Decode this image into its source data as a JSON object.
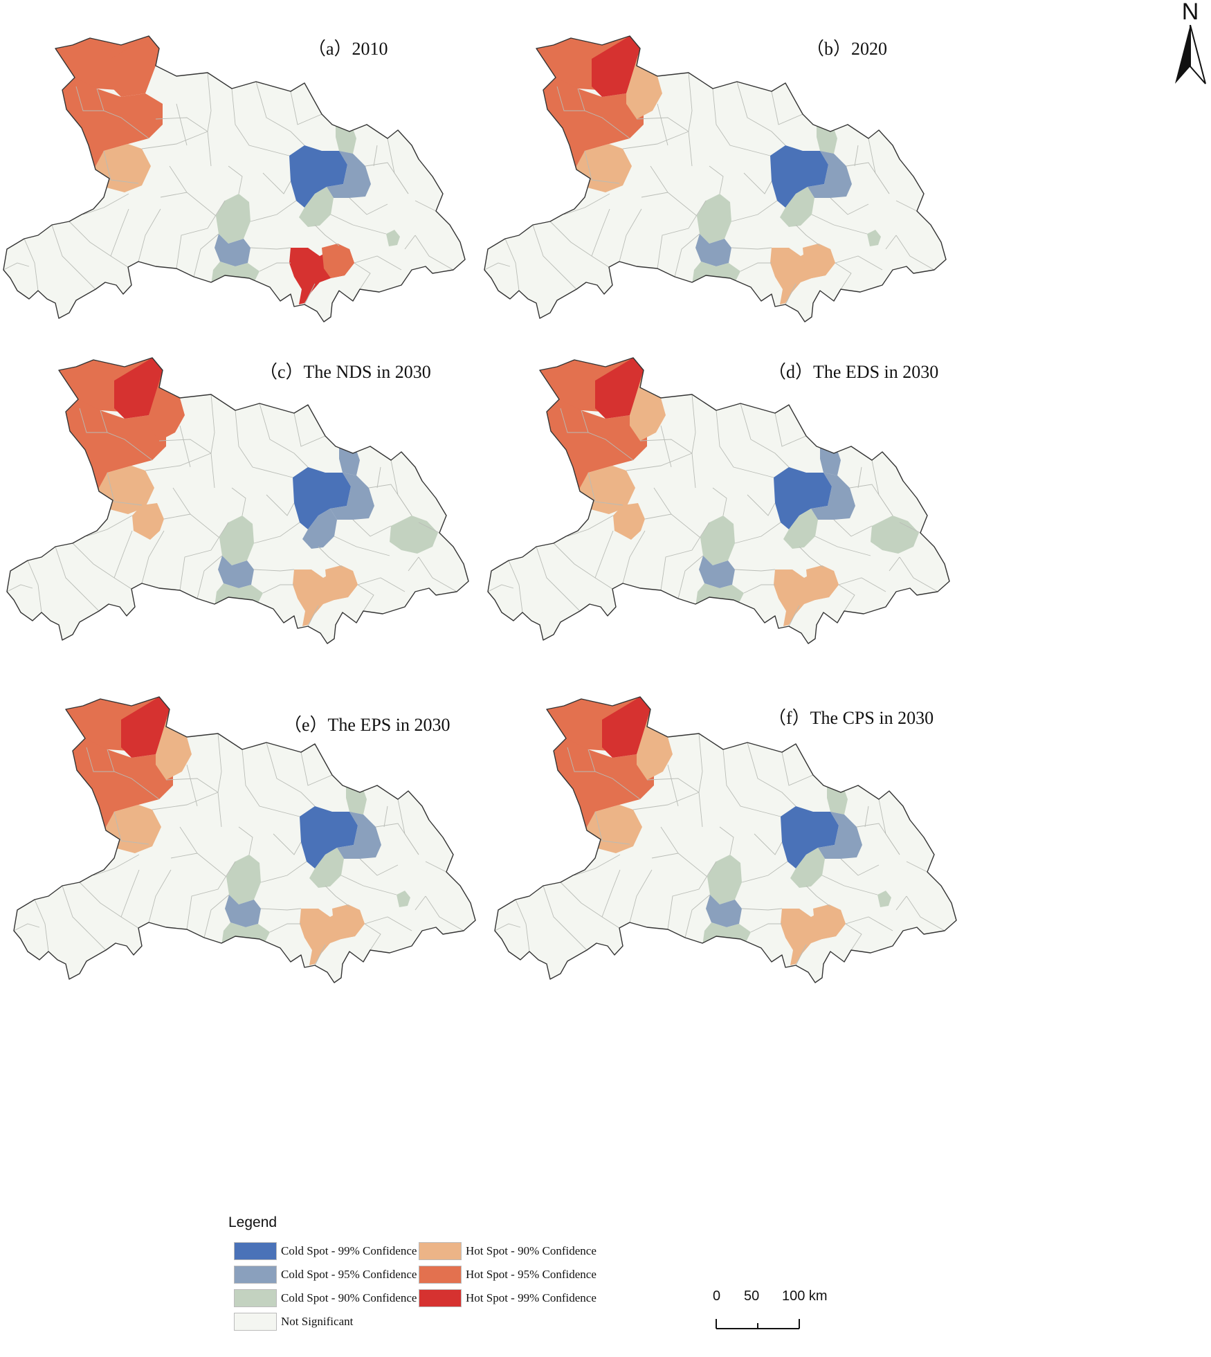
{
  "panels": [
    {
      "id": "a",
      "title": "（a）2010",
      "colors": {
        "nw": "hot95",
        "nw2": "hot95",
        "nw3": "hot95",
        "nw_south": "hot90",
        "ne_ext": "ns",
        "c_core": "cold99",
        "c_east": "cold95",
        "c_ne": "cold90",
        "c_south": "cold90",
        "cw_north": "cold90",
        "cw_mid": "cold95",
        "cw_south": "cold90",
        "s_hot": "hot99",
        "s_hot_e": "hot95",
        "e_small": "cold90",
        "e_mid": "ns",
        "w_mid": "ns"
      }
    },
    {
      "id": "b",
      "title": "（b）2020",
      "colors": {
        "nw": "hot95",
        "nw2": "hot99",
        "nw3": "hot95",
        "nw_south": "hot90",
        "ne_ext": "hot90",
        "c_core": "cold99",
        "c_east": "cold95",
        "c_ne": "cold90",
        "c_south": "cold90",
        "cw_north": "cold90",
        "cw_mid": "cold95",
        "cw_south": "cold90",
        "s_hot": "hot90",
        "s_hot_e": "hot90",
        "e_small": "cold90",
        "e_mid": "ns",
        "w_mid": "ns"
      }
    },
    {
      "id": "c",
      "title": "（c）The NDS in 2030",
      "colors": {
        "nw": "hot95",
        "nw2": "hot99",
        "nw3": "hot95",
        "nw_south": "hot90",
        "ne_ext": "hot95",
        "c_core": "cold99",
        "c_east": "cold95",
        "c_ne": "cold95",
        "c_south": "cold95",
        "cw_north": "cold90",
        "cw_mid": "cold95",
        "cw_south": "cold90",
        "s_hot": "hot90",
        "s_hot_e": "hot90",
        "e_small": "ns",
        "e_mid": "cold90",
        "w_mid": "hot90"
      }
    },
    {
      "id": "d",
      "title": "（d）The EDS in 2030",
      "colors": {
        "nw": "hot95",
        "nw2": "hot99",
        "nw3": "hot95",
        "nw_south": "hot90",
        "ne_ext": "hot90",
        "c_core": "cold99",
        "c_east": "cold95",
        "c_ne": "cold95",
        "c_south": "cold90",
        "cw_north": "cold90",
        "cw_mid": "cold95",
        "cw_south": "cold90",
        "s_hot": "hot90",
        "s_hot_e": "hot90",
        "e_small": "ns",
        "e_mid": "cold90",
        "w_mid": "hot90"
      }
    },
    {
      "id": "e",
      "title": "（e）The EPS in 2030",
      "colors": {
        "nw": "hot95",
        "nw2": "hot99",
        "nw3": "hot95",
        "nw_south": "hot90",
        "ne_ext": "hot90",
        "c_core": "cold99",
        "c_east": "cold95",
        "c_ne": "cold90",
        "c_south": "cold90",
        "cw_north": "cold90",
        "cw_mid": "cold95",
        "cw_south": "cold90",
        "s_hot": "hot90",
        "s_hot_e": "hot90",
        "e_small": "cold90",
        "e_mid": "ns",
        "w_mid": "ns"
      }
    },
    {
      "id": "f",
      "title": "（f）The CPS in 2030",
      "colors": {
        "nw": "hot95",
        "nw2": "hot99",
        "nw3": "hot95",
        "nw_south": "hot90",
        "ne_ext": "hot90",
        "c_core": "cold99",
        "c_east": "cold95",
        "c_ne": "cold90",
        "c_south": "cold90",
        "cw_north": "cold90",
        "cw_mid": "cold95",
        "cw_south": "cold90",
        "s_hot": "hot90",
        "s_hot_e": "hot90",
        "e_small": "cold90",
        "e_mid": "ns",
        "w_mid": "ns"
      }
    }
  ],
  "classes": {
    "cold99": "#4a72b8",
    "cold95": "#8aa0bd",
    "cold90": "#c3d2c0",
    "ns": "#f4f6f1",
    "hot90": "#ecb487",
    "hot95": "#e3714f",
    "hot99": "#d63230"
  },
  "legend": {
    "title": "Legend",
    "items": [
      {
        "label": "Cold Spot - 99% Confidence",
        "cls": "cold99"
      },
      {
        "label": "Cold Spot - 95% Confidence",
        "cls": "cold95"
      },
      {
        "label": "Cold Spot - 90% Confidence",
        "cls": "cold90"
      },
      {
        "label": "Not Significant",
        "cls": "ns"
      },
      {
        "label": "Hot Spot - 90% Confidence",
        "cls": "hot90"
      },
      {
        "label": "Hot Spot - 95% Confidence",
        "cls": "hot95"
      },
      {
        "label": "Hot Spot - 99% Confidence",
        "cls": "hot99"
      }
    ]
  },
  "north_arrow": {
    "label": "N"
  },
  "scale_bar": {
    "ticks": [
      "0",
      "50",
      "100 km"
    ]
  }
}
